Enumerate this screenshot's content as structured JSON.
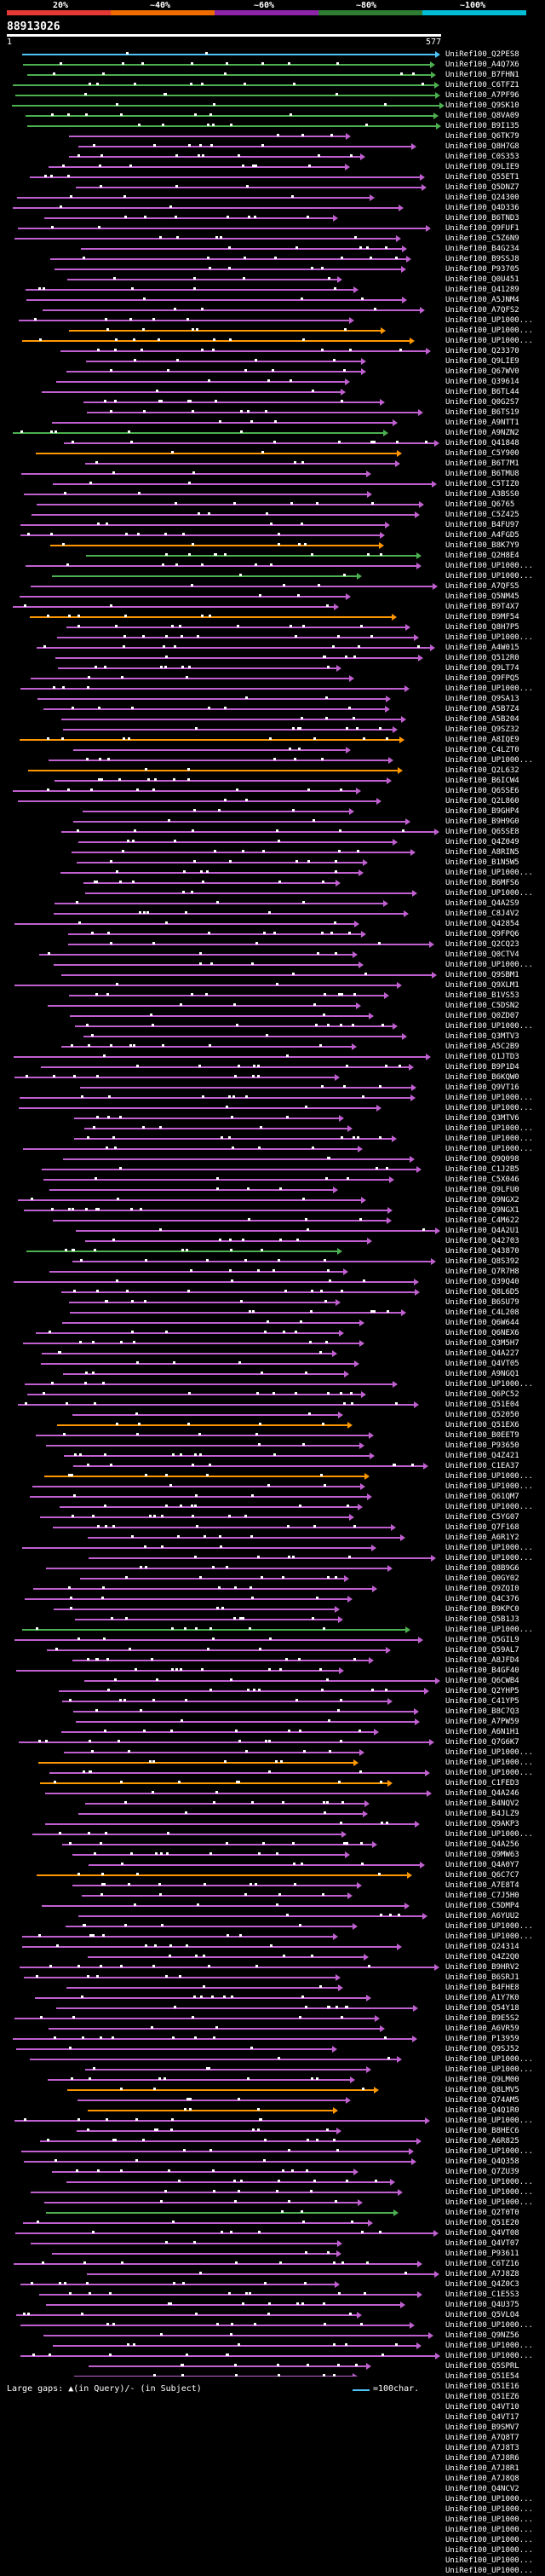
{
  "header": {
    "percent_labels": [
      "20%",
      "~40%",
      "~60%",
      "~80%",
      "~100%"
    ],
    "scale_colors": [
      "#e53935",
      "#ef6c00",
      "#8e24aa",
      "#2e7d32",
      "#00bcd4"
    ],
    "query_id": "88913026",
    "ruler_start": "1",
    "ruler_end": "577"
  },
  "colors": {
    "cyan": "#4fc3f7",
    "green": "#4caf50",
    "orange": "#ff9800",
    "purple": "#c060d0",
    "bright_green": "#39e639"
  },
  "hits": [
    "UniRef100_Q2PES8",
    "UniRef100_A4Q7X6",
    "UniRef100_B7FHN1",
    "UniRef100_C6TFZ1",
    "UniRef100_A7PF96",
    "UniRef100_Q9SK10",
    "UniRef100_Q8VA09",
    "UniRef100_B9I135",
    "UniRef100_Q6TK79",
    "UniRef100_Q8H7G8",
    "UniRef100_C0S353",
    "UniRef100_Q9LIE9",
    "UniRef100_Q55ET1",
    "UniRef100_Q5DNZ7",
    "UniRef100_Q24300",
    "UniRef100_Q4D336",
    "UniRef100_B6TND3",
    "UniRef100_Q9FUF1",
    "UniRef100_C5Z6N9",
    "UniRef100_B4G234",
    "UniRef100_B9SSJ8",
    "UniRef100_P93705",
    "UniRef100_Q0U451",
    "UniRef100_Q41289",
    "UniRef100_A5JNM4",
    "UniRef100_A7QFS2",
    "UniRef100_UP1000...",
    "UniRef100_UP1000...",
    "UniRef100_UP1000...",
    "UniRef100_Q23370",
    "UniRef100_Q9LIE9",
    "UniRef100_Q67WV0",
    "UniRef100_Q39614",
    "UniRef100_B6TL44",
    "UniRef100_Q0G2S7",
    "UniRef100_B6TS19",
    "UniRef100_A9NTT1",
    "UniRef100_A9NZN2",
    "UniRef100_Q41848",
    "UniRef100_C5Y900",
    "UniRef100_B6T7M1",
    "UniRef100_B6TMU8",
    "UniRef100_C5TIZ0",
    "UniRef100_A3BSS0",
    "UniRef100_Q6765",
    "UniRef100_C5Z425",
    "UniRef100_B4FU97",
    "UniRef100_A4FGD5",
    "UniRef100_B8K7Y9",
    "UniRef100_Q2H8E4",
    "UniRef100_UP1000...",
    "UniRef100_UP1000...",
    "UniRef100_A7QFS5",
    "UniRef100_Q5NM45",
    "UniRef100_B9T4X7",
    "UniRef100_B9MF54",
    "UniRef100_Q8H7P5",
    "UniRef100_UP1000...",
    "UniRef100_A4W015",
    "UniRef100_Q512R0",
    "UniRef100_Q9LT74",
    "UniRef100_Q9FPQ5",
    "UniRef100_UP1000...",
    "UniRef100_Q9SA13",
    "UniRef100_A5B7Z4",
    "UniRef100_A5B204",
    "UniRef100_Q9SZ32",
    "UniRef100_A8IQE9",
    "UniRef100_C4LZT0",
    "UniRef100_UP1000...",
    "UniRef100_Q2L632",
    "UniRef100_B6ICW4",
    "UniRef100_Q6SSE6",
    "UniRef100_Q2L860",
    "UniRef100_B9GHP4",
    "UniRef100_B9H9G0",
    "UniRef100_Q6SSE8",
    "UniRef100_Q4Z049",
    "UniRef100_A8RIN5",
    "UniRef100_B1N5W5",
    "UniRef100_UP1000...",
    "UniRef100_B6MFS6",
    "UniRef100_UP1000...",
    "UniRef100_Q4A2S9",
    "UniRef100_C8J4V2",
    "UniRef100_Q42854",
    "UniRef100_Q9FPQ6",
    "UniRef100_Q2CQ23",
    "UniRef100_Q0CTV4",
    "UniRef100_UP1000...",
    "UniRef100_Q9SBM1",
    "UniRef100_Q9XLM1",
    "UniRef100_B1VS53",
    "UniRef100_C5DSN2",
    "UniRef100_Q0ZD07",
    "UniRef100_UP1000...",
    "UniRef100_Q3MTV3",
    "UniRef100_A5C2B9",
    "UniRef100_Q1JTD3",
    "UniRef100_B9P1D4",
    "UniRef100_B6KQW0",
    "UniRef100_Q9VT16",
    "UniRef100_UP1000...",
    "UniRef100_UP1000...",
    "UniRef100_Q3MTV6",
    "UniRef100_UP1000...",
    "UniRef100_UP1000...",
    "UniRef100_UP1000...",
    "UniRef100_Q9Q098",
    "UniRef100_C1J2B5",
    "UniRef100_C5X046",
    "UniRef100_Q9LFU0",
    "UniRef100_Q9NGX2",
    "UniRef100_Q9NGX1",
    "UniRef100_C4M622",
    "UniRef100_Q4A2U1",
    "UniRef100_Q42703",
    "UniRef100_Q43870",
    "UniRef100_Q8S392",
    "UniRef100_Q7R7H8",
    "UniRef100_Q39Q40",
    "UniRef100_Q8L6D5",
    "UniRef100_B6SU79",
    "UniRef100_C4L208",
    "UniRef100_Q6W644",
    "UniRef100_Q6NEX6",
    "UniRef100_Q3M5H7",
    "UniRef100_Q4A227",
    "UniRef100_Q4VT05",
    "UniRef100_A9NGQ1",
    "UniRef100_UP1000...",
    "UniRef100_Q6PC52",
    "UniRef100_Q51E04",
    "UniRef100_Q52050",
    "UniRef100_Q51EX6",
    "UniRef100_B0EET9",
    "UniRef100_P93650",
    "UniRef100_Q4Z421",
    "UniRef100_C1EA37",
    "UniRef100_UP1000...",
    "UniRef100_UP1000...",
    "UniRef100_Q61QM7",
    "UniRef100_UP1000...",
    "UniRef100_C5YG07",
    "UniRef100_Q7F168",
    "UniRef100_A6R1Y2",
    "UniRef100_UP1000...",
    "UniRef100_UP1000...",
    "UniRef100_Q8B9G6",
    "UniRef100_Q0GY02",
    "UniRef100_Q9ZQI0",
    "UniRef100_Q4C376",
    "UniRef100_B9KPC0",
    "UniRef100_Q5B1J3",
    "UniRef100_UP1000...",
    "UniRef100_Q5GIL9",
    "UniRef100_Q59AL7",
    "UniRef100_A8JFD4",
    "UniRef100_B4GF40",
    "UniRef100_Q6CWB4",
    "UniRef100_Q2YHP5",
    "UniRef100_C41YP5",
    "UniRef100_B8C7Q3",
    "UniRef100_A7PW59",
    "UniRef100_A6N1H1",
    "UniRef100_Q7G6K7",
    "UniRef100_UP1000...",
    "UniRef100_UP1000...",
    "UniRef100_UP1000...",
    "UniRef100_C1FED3",
    "UniRef100_Q4A246",
    "UniRef100_B4NQV2",
    "UniRef100_B4JLZ9",
    "UniRef100_Q9AKP3",
    "UniRef100_UP1000...",
    "UniRef100_Q4A256",
    "UniRef100_Q9MW63",
    "UniRef100_Q4A0Y7",
    "UniRef100_Q6C7C7",
    "UniRef100_A7E8T4",
    "UniRef100_C7J5H0",
    "UniRef100_C5DMP4",
    "UniRef100_A6YUU2",
    "UniRef100_UP1000...",
    "UniRef100_UP1000...",
    "UniRef100_Q24314",
    "UniRef100_Q4Z2Q0",
    "UniRef100_B9HRV2",
    "UniRef100_B6SRJ1",
    "UniRef100_B4FHE8",
    "UniRef100_A1Y7K0",
    "UniRef100_Q54Y18",
    "UniRef100_B9E5S2",
    "UniRef100_A6VR59",
    "UniRef100_P13959",
    "UniRef100_Q9SJ52",
    "UniRef100_UP1000...",
    "UniRef100_UP1000...",
    "UniRef100_Q9LM00",
    "UniRef100_Q8LMV5",
    "UniRef100_Q74AM5",
    "UniRef100_Q4Q1R0",
    "UniRef100_UP1000...",
    "UniRef100_B8HEC6",
    "UniRef100_A6R825",
    "UniRef100_UP1000...",
    "UniRef100_Q4Q358",
    "UniRef100_Q7ZU39",
    "UniRef100_UP1000...",
    "UniRef100_UP1000...",
    "UniRef100_UP1000...",
    "UniRef100_Q2T0T0",
    "UniRef100_Q51E20",
    "UniRef100_Q4VT08",
    "UniRef100_Q4VT07",
    "UniRef100_P93611",
    "UniRef100_C6TZ16",
    "UniRef100_A7J8Z8",
    "UniRef100_Q4Z0C3",
    "UniRef100_C1E5S3",
    "UniRef100_Q4U375",
    "UniRef100_Q5VLO4",
    "UniRef100_UP1000...",
    "UniRef100_Q9NZ56",
    "UniRef100_UP1000...",
    "UniRef100_UP1000...",
    "UniRef100_Q5SPRL",
    "UniRef100_Q51E54",
    "UniRef100_Q51E16",
    "UniRef100_Q51EZ6",
    "UniRef100_Q4VT10",
    "UniRef100_Q4VT17",
    "UniRef100_B9SMV7",
    "UniRef100_A7Q8T7",
    "UniRef100_A7J8T3",
    "UniRef100_A7J8R6",
    "UniRef100_A7J8R1",
    "UniRef100_A7J8Q8",
    "UniRef100_Q4NCV2",
    "UniRef100_UP1000...",
    "UniRef100_UP1000...",
    "UniRef100_UP1000...",
    "UniRef100_UP1000...",
    "UniRef100_UP1000...",
    "UniRef100_UP1000...",
    "UniRef100_UP1000...",
    "UniRef100_UP1000..."
  ],
  "legend": {
    "gaps_text": "Large gaps: ▲(in Query)/- (in Subject)",
    "scale_text": "=100char."
  }
}
